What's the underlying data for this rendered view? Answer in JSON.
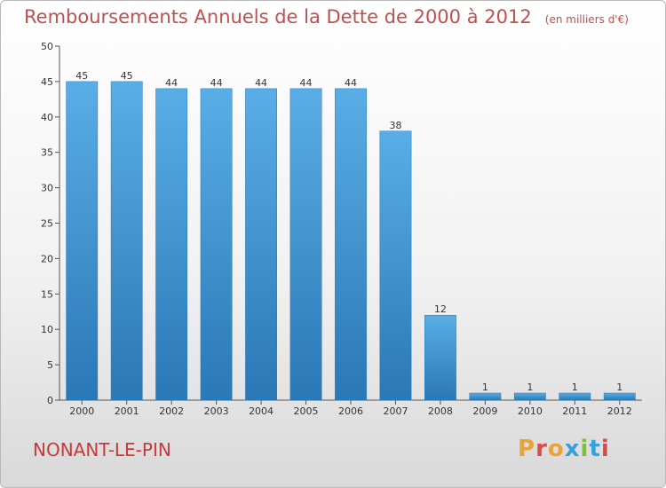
{
  "header": {
    "title": "Remboursements Annuels de la Dette de 2000 à 2012",
    "unit": "(en milliers d'€)"
  },
  "footer": {
    "commune": "NONANT-LE-PIN",
    "logo_text": "Proxiti"
  },
  "colors": {
    "bar_light": "#5aade6",
    "bar_dark": "#2a78b6",
    "title": "#c0504d",
    "logo_letters": [
      "#e8a33a",
      "#d94b4b",
      "#e8a33a",
      "#3aa0d9",
      "#7cbf3a",
      "#3aa0d9",
      "#d94b4b"
    ]
  },
  "chart_data": {
    "type": "bar",
    "title": "Remboursements Annuels de la Dette de 2000 à 2012",
    "categories": [
      "2000",
      "2001",
      "2002",
      "2003",
      "2004",
      "2005",
      "2006",
      "2007",
      "2008",
      "2009",
      "2010",
      "2011",
      "2012"
    ],
    "values": [
      45,
      45,
      44,
      44,
      44,
      44,
      44,
      38,
      12,
      1,
      1,
      1,
      1
    ],
    "xlabel": "",
    "ylabel": "",
    "ylim": [
      0,
      50
    ],
    "yticks": [
      0,
      5,
      10,
      15,
      20,
      25,
      30,
      35,
      40,
      45,
      50
    ],
    "grid": false,
    "legend": "none"
  }
}
